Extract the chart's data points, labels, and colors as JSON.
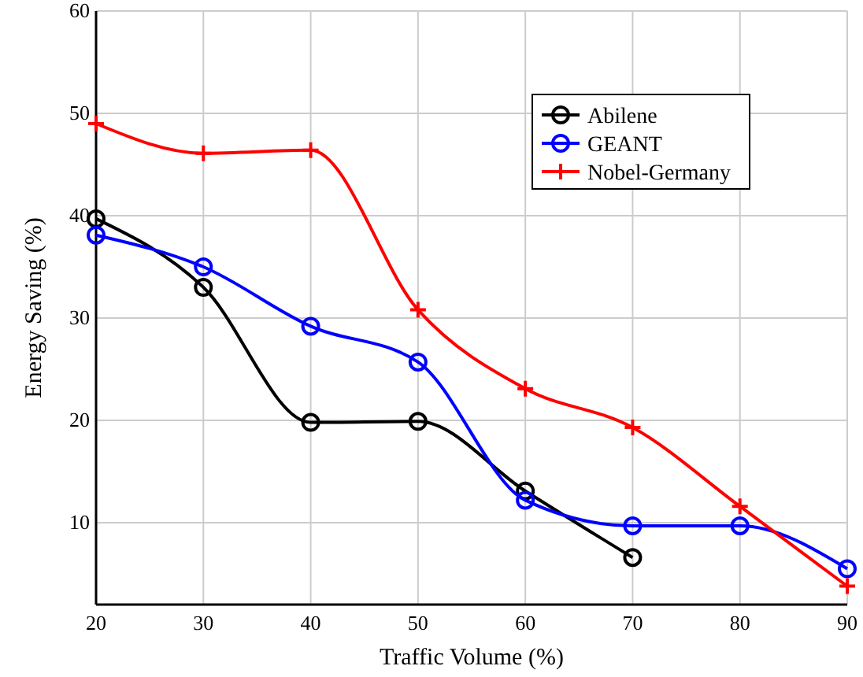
{
  "chart_data": {
    "type": "line",
    "xlabel": "Traffic Volume (%)",
    "ylabel": "Energy Saving (%)",
    "x": [
      20,
      30,
      40,
      50,
      60,
      70,
      80,
      90
    ],
    "series": [
      {
        "name": "Abilene",
        "color": "#000000",
        "marker": "circle",
        "values": [
          39.7,
          33,
          19.8,
          19.9,
          13.1,
          6.6,
          null,
          null
        ]
      },
      {
        "name": "GEANT",
        "color": "#0000ff",
        "marker": "circle",
        "values": [
          38.1,
          35,
          29.2,
          25.7,
          12.2,
          9.7,
          9.7,
          5.5
        ]
      },
      {
        "name": "Nobel-Germany",
        "color": "#ff0000",
        "marker": "cross",
        "values": [
          49,
          46.1,
          46.4,
          30.8,
          23.1,
          19.3,
          11.6,
          3.8
        ]
      }
    ],
    "xlim": [
      20,
      90
    ],
    "xticks": [
      20,
      30,
      40,
      50,
      60,
      70,
      80,
      90
    ],
    "ylim": [
      2,
      60
    ],
    "yticks": [
      10,
      20,
      30,
      40,
      50,
      60
    ],
    "grid": true,
    "legend": "top right",
    "line_style": "solid"
  }
}
